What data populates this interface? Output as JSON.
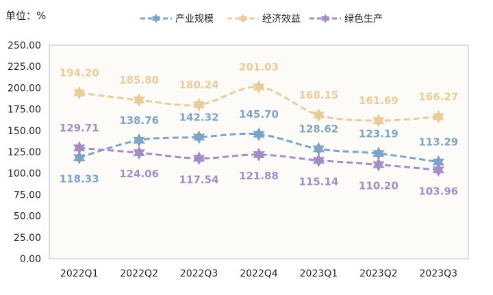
{
  "chart_data": {
    "type": "line",
    "unit_label": "单位：%",
    "categories": [
      "2022Q1",
      "2022Q2",
      "2022Q3",
      "2022Q4",
      "2023Q1",
      "2023Q2",
      "2023Q3"
    ],
    "ylim": [
      0,
      250
    ],
    "yticks": [
      "0.00",
      "25.00",
      "50.00",
      "75.00",
      "100.00",
      "125.00",
      "150.00",
      "175.00",
      "200.00",
      "225.00",
      "250.00"
    ],
    "grid": false,
    "legend_position": "top",
    "series": [
      {
        "name": "产业规模",
        "color": "#7FA3C6",
        "values": [
          118.33,
          138.76,
          142.32,
          145.7,
          128.62,
          123.19,
          113.29
        ],
        "labels": [
          "118.33",
          "138.76",
          "142.32",
          "145.70",
          "128.62",
          "123.19",
          "113.29"
        ],
        "label_side": [
          "below",
          "above",
          "above",
          "above",
          "above",
          "above",
          "above"
        ]
      },
      {
        "name": "经济效益",
        "color": "#E8CC9A",
        "values": [
          194.2,
          185.8,
          180.24,
          201.03,
          168.15,
          161.69,
          166.27
        ],
        "labels": [
          "194.20",
          "185.80",
          "180.24",
          "201.03",
          "168.15",
          "161.69",
          "166.27"
        ],
        "label_side": [
          "above",
          "above",
          "above",
          "above",
          "above",
          "above",
          "above"
        ]
      },
      {
        "name": "绿色生产",
        "color": "#A28DC4",
        "values": [
          129.71,
          124.06,
          117.54,
          121.88,
          115.14,
          110.2,
          103.96
        ],
        "labels": [
          "129.71",
          "124.06",
          "117.54",
          "121.88",
          "115.14",
          "110.20",
          "103.96"
        ],
        "label_side": [
          "above",
          "below",
          "below",
          "below",
          "below",
          "below",
          "below"
        ]
      }
    ]
  }
}
